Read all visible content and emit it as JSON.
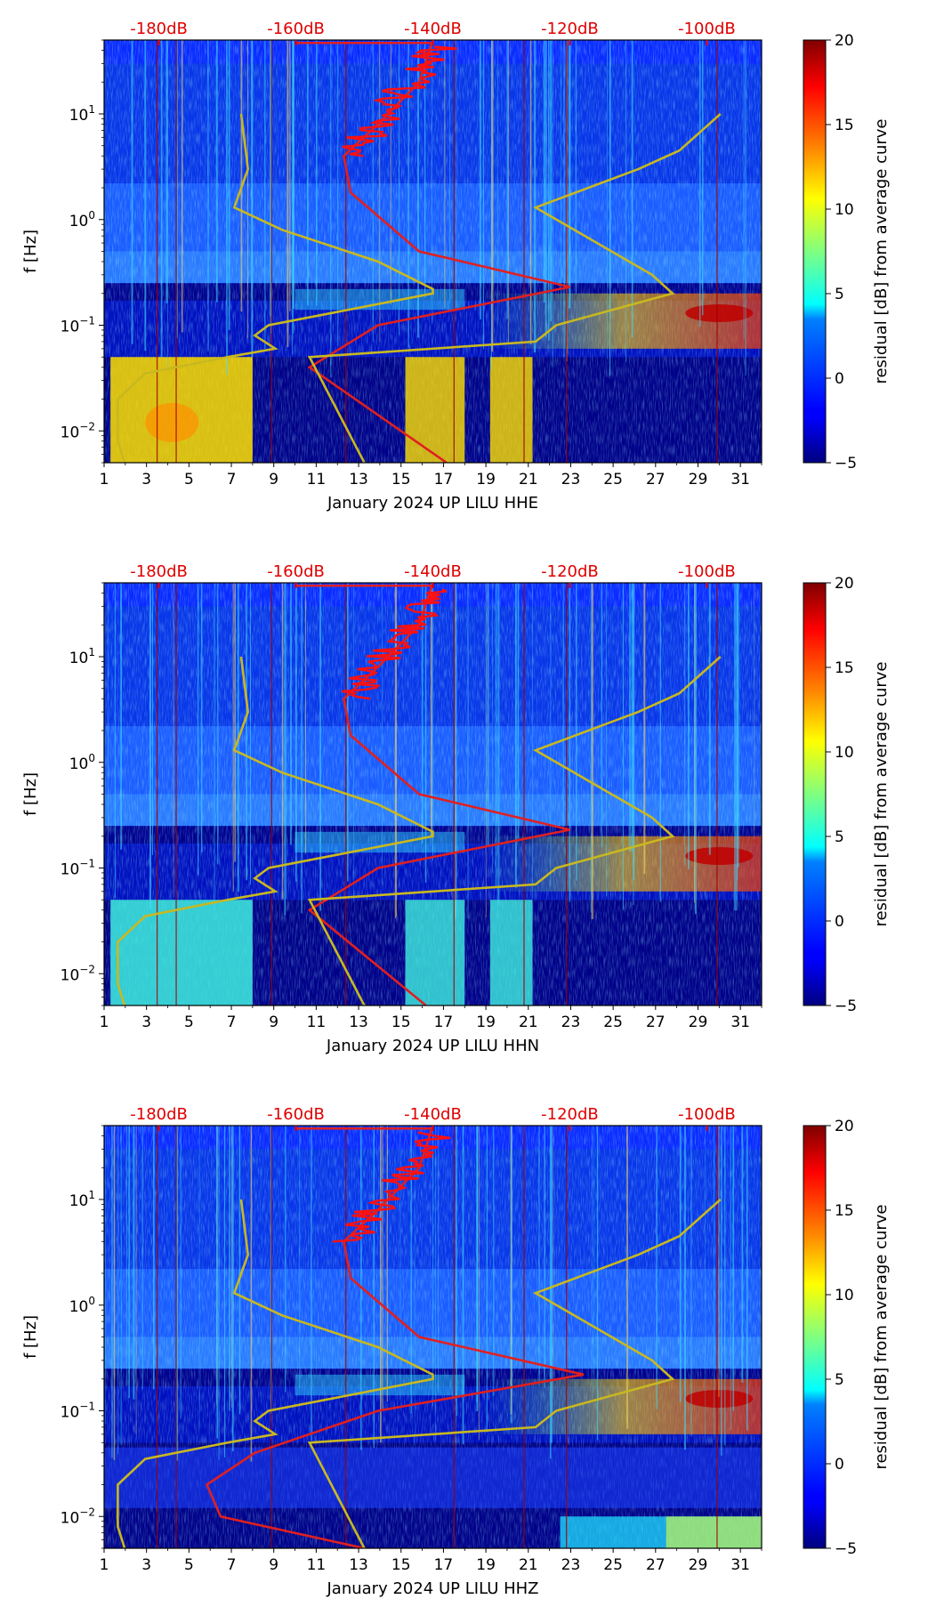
{
  "chart_data": [
    {
      "type": "heatmap",
      "xlabel": "January 2024 UP LILU  HHE",
      "ylabel": "f [Hz]",
      "x_tick_labels": [
        "1",
        "3",
        "5",
        "7",
        "9",
        "11",
        "13",
        "15",
        "17",
        "19",
        "21",
        "23",
        "25",
        "27",
        "29",
        "31"
      ],
      "y_tick_base": "10",
      "y_tick_exponents": [
        "−2",
        "−1",
        "0",
        "1"
      ],
      "db_tick_labels": [
        "-180dB",
        "-160dB",
        "-140dB",
        "-120dB",
        "-100dB"
      ],
      "colorbar_label": "residual [dB] from average curve",
      "colorbar_ticks": [
        "−5",
        "0",
        "5",
        "10",
        "15",
        "20"
      ],
      "colorbar_range": [
        -5,
        20
      ],
      "xlim": [
        1,
        32
      ],
      "ylim_hz": [
        0.005,
        50
      ],
      "db_range": [
        -188,
        -92
      ],
      "red_curve_dB_vs_hz": [
        [
          0.005,
          -138
        ],
        [
          0.04,
          -158
        ],
        [
          0.1,
          -148
        ],
        [
          0.23,
          -120
        ],
        [
          0.5,
          -142
        ],
        [
          1.8,
          -152
        ],
        [
          4,
          -153
        ],
        [
          8,
          -148
        ],
        [
          20,
          -142
        ],
        [
          50,
          -140
        ]
      ],
      "yellow_curves_dB_vs_hz": [
        [
          [
            0.005,
            -185
          ],
          [
            0.008,
            -186
          ],
          [
            0.02,
            -186
          ],
          [
            0.035,
            -182
          ],
          [
            0.05,
            -170
          ],
          [
            0.06,
            -163
          ],
          [
            0.08,
            -166
          ],
          [
            0.1,
            -164
          ],
          [
            0.2,
            -140
          ],
          [
            0.22,
            -140
          ],
          [
            0.4,
            -148
          ],
          [
            0.8,
            -162
          ],
          [
            1.3,
            -169
          ],
          [
            3,
            -167
          ],
          [
            10,
            -168
          ]
        ],
        [
          [
            0.005,
            -150
          ],
          [
            0.05,
            -158
          ],
          [
            0.07,
            -125
          ],
          [
            0.1,
            -122
          ],
          [
            0.2,
            -105
          ],
          [
            0.3,
            -108
          ],
          [
            1.3,
            -125
          ],
          [
            3,
            -110
          ],
          [
            4.5,
            -104
          ],
          [
            10,
            -98
          ]
        ]
      ]
    },
    {
      "type": "heatmap",
      "xlabel": "January 2024 UP LILU  HHN",
      "ylabel": "f [Hz]",
      "x_tick_labels": [
        "1",
        "3",
        "5",
        "7",
        "9",
        "11",
        "13",
        "15",
        "17",
        "19",
        "21",
        "23",
        "25",
        "27",
        "29",
        "31"
      ],
      "y_tick_base": "10",
      "y_tick_exponents": [
        "−2",
        "−1",
        "0",
        "1"
      ],
      "db_tick_labels": [
        "-180dB",
        "-160dB",
        "-140dB",
        "-120dB",
        "-100dB"
      ],
      "colorbar_label": "residual [dB] from average curve",
      "colorbar_ticks": [
        "−5",
        "0",
        "5",
        "10",
        "15",
        "20"
      ],
      "colorbar_range": [
        -5,
        20
      ],
      "xlim": [
        1,
        32
      ],
      "ylim_hz": [
        0.005,
        50
      ],
      "db_range": [
        -188,
        -92
      ],
      "red_curve_dB_vs_hz": [
        [
          0.005,
          -141
        ],
        [
          0.04,
          -158
        ],
        [
          0.1,
          -148
        ],
        [
          0.23,
          -120
        ],
        [
          0.5,
          -142
        ],
        [
          1.8,
          -152
        ],
        [
          4,
          -153
        ],
        [
          8,
          -148
        ],
        [
          20,
          -142
        ],
        [
          50,
          -140
        ]
      ],
      "yellow_curves_dB_vs_hz": [
        [
          [
            0.005,
            -185
          ],
          [
            0.008,
            -186
          ],
          [
            0.02,
            -186
          ],
          [
            0.035,
            -182
          ],
          [
            0.05,
            -170
          ],
          [
            0.06,
            -163
          ],
          [
            0.08,
            -166
          ],
          [
            0.1,
            -164
          ],
          [
            0.2,
            -140
          ],
          [
            0.22,
            -140
          ],
          [
            0.4,
            -148
          ],
          [
            0.8,
            -162
          ],
          [
            1.3,
            -169
          ],
          [
            3,
            -167
          ],
          [
            10,
            -168
          ]
        ],
        [
          [
            0.005,
            -150
          ],
          [
            0.05,
            -158
          ],
          [
            0.07,
            -125
          ],
          [
            0.1,
            -122
          ],
          [
            0.2,
            -105
          ],
          [
            0.3,
            -108
          ],
          [
            1.3,
            -125
          ],
          [
            3,
            -110
          ],
          [
            4.5,
            -104
          ],
          [
            10,
            -98
          ]
        ]
      ]
    },
    {
      "type": "heatmap",
      "xlabel": "January 2024 UP LILU  HHZ",
      "ylabel": "f [Hz]",
      "x_tick_labels": [
        "1",
        "3",
        "5",
        "7",
        "9",
        "11",
        "13",
        "15",
        "17",
        "19",
        "21",
        "23",
        "25",
        "27",
        "29",
        "31"
      ],
      "y_tick_base": "10",
      "y_tick_exponents": [
        "−2",
        "−1",
        "0",
        "1"
      ],
      "db_tick_labels": [
        "-180dB",
        "-160dB",
        "-140dB",
        "-120dB",
        "-100dB"
      ],
      "colorbar_label": "residual [dB] from average curve",
      "colorbar_ticks": [
        "−5",
        "0",
        "5",
        "10",
        "15",
        "20"
      ],
      "colorbar_range": [
        -5,
        20
      ],
      "xlim": [
        1,
        32
      ],
      "ylim_hz": [
        0.005,
        50
      ],
      "db_range": [
        -188,
        -92
      ],
      "red_curve_dB_vs_hz": [
        [
          0.005,
          -150
        ],
        [
          0.01,
          -171
        ],
        [
          0.02,
          -173
        ],
        [
          0.04,
          -166
        ],
        [
          0.1,
          -148
        ],
        [
          0.22,
          -118
        ],
        [
          0.5,
          -142
        ],
        [
          1.8,
          -152
        ],
        [
          4,
          -153
        ],
        [
          8,
          -148
        ],
        [
          20,
          -142
        ],
        [
          50,
          -140
        ]
      ],
      "yellow_curves_dB_vs_hz": [
        [
          [
            0.005,
            -185
          ],
          [
            0.008,
            -186
          ],
          [
            0.02,
            -186
          ],
          [
            0.035,
            -182
          ],
          [
            0.05,
            -170
          ],
          [
            0.06,
            -163
          ],
          [
            0.08,
            -166
          ],
          [
            0.1,
            -164
          ],
          [
            0.2,
            -140
          ],
          [
            0.22,
            -140
          ],
          [
            0.4,
            -148
          ],
          [
            0.8,
            -162
          ],
          [
            1.3,
            -169
          ],
          [
            3,
            -167
          ],
          [
            10,
            -168
          ]
        ],
        [
          [
            0.005,
            -150
          ],
          [
            0.05,
            -158
          ],
          [
            0.07,
            -125
          ],
          [
            0.1,
            -122
          ],
          [
            0.2,
            -105
          ],
          [
            0.3,
            -108
          ],
          [
            1.3,
            -125
          ],
          [
            3,
            -110
          ],
          [
            4.5,
            -104
          ],
          [
            10,
            -98
          ]
        ]
      ]
    }
  ]
}
